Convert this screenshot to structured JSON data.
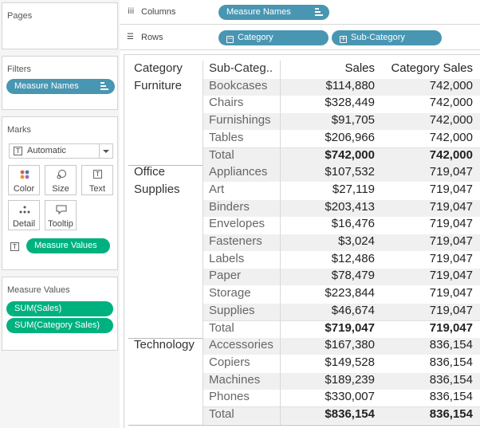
{
  "sidebar": {
    "pages": {
      "title": "Pages"
    },
    "filters": {
      "title": "Filters",
      "pill": "Measure Names"
    },
    "marks": {
      "title": "Marks",
      "mark_type": "Automatic",
      "buttons": [
        "Color",
        "Size",
        "Text",
        "Detail",
        "Tooltip"
      ],
      "text_pill": "Measure Values"
    },
    "measure_values": {
      "title": "Measure Values",
      "pills": [
        "SUM(Sales)",
        "SUM(Category Sales)"
      ]
    }
  },
  "shelves": {
    "columns": {
      "label": "Columns",
      "pills": [
        "Measure Names"
      ]
    },
    "rows": {
      "label": "Rows",
      "pills": [
        "Category",
        "Sub-Category"
      ]
    }
  },
  "table": {
    "headers": [
      "Category",
      "Sub-Categ..",
      "Sales",
      "Category Sales"
    ],
    "groups": [
      {
        "category": [
          "Furniture"
        ],
        "rows": [
          {
            "sub": "Bookcases",
            "sales": "$114,880",
            "cat_sales": "742,000"
          },
          {
            "sub": "Chairs",
            "sales": "$328,449",
            "cat_sales": "742,000"
          },
          {
            "sub": "Furnishings",
            "sales": "$91,705",
            "cat_sales": "742,000"
          },
          {
            "sub": "Tables",
            "sales": "$206,966",
            "cat_sales": "742,000"
          }
        ],
        "total": {
          "label": "Total",
          "sales": "$742,000",
          "cat_sales": "742,000"
        }
      },
      {
        "category": [
          "Office",
          "Supplies"
        ],
        "rows": [
          {
            "sub": "Appliances",
            "sales": "$107,532",
            "cat_sales": "719,047"
          },
          {
            "sub": "Art",
            "sales": "$27,119",
            "cat_sales": "719,047"
          },
          {
            "sub": "Binders",
            "sales": "$203,413",
            "cat_sales": "719,047"
          },
          {
            "sub": "Envelopes",
            "sales": "$16,476",
            "cat_sales": "719,047"
          },
          {
            "sub": "Fasteners",
            "sales": "$3,024",
            "cat_sales": "719,047"
          },
          {
            "sub": "Labels",
            "sales": "$12,486",
            "cat_sales": "719,047"
          },
          {
            "sub": "Paper",
            "sales": "$78,479",
            "cat_sales": "719,047"
          },
          {
            "sub": "Storage",
            "sales": "$223,844",
            "cat_sales": "719,047"
          },
          {
            "sub": "Supplies",
            "sales": "$46,674",
            "cat_sales": "719,047"
          }
        ],
        "total": {
          "label": "Total",
          "sales": "$719,047",
          "cat_sales": "719,047"
        }
      },
      {
        "category": [
          "Technology"
        ],
        "rows": [
          {
            "sub": "Accessories",
            "sales": "$167,380",
            "cat_sales": "836,154"
          },
          {
            "sub": "Copiers",
            "sales": "$149,528",
            "cat_sales": "836,154"
          },
          {
            "sub": "Machines",
            "sales": "$189,239",
            "cat_sales": "836,154"
          },
          {
            "sub": "Phones",
            "sales": "$330,007",
            "cat_sales": "836,154"
          }
        ],
        "total": {
          "label": "Total",
          "sales": "$836,154",
          "cat_sales": "836,154"
        }
      }
    ]
  },
  "colors": {
    "dimension_pill": "#4996b2",
    "measure_pill": "#00b180",
    "band": "#f0f0f0"
  }
}
